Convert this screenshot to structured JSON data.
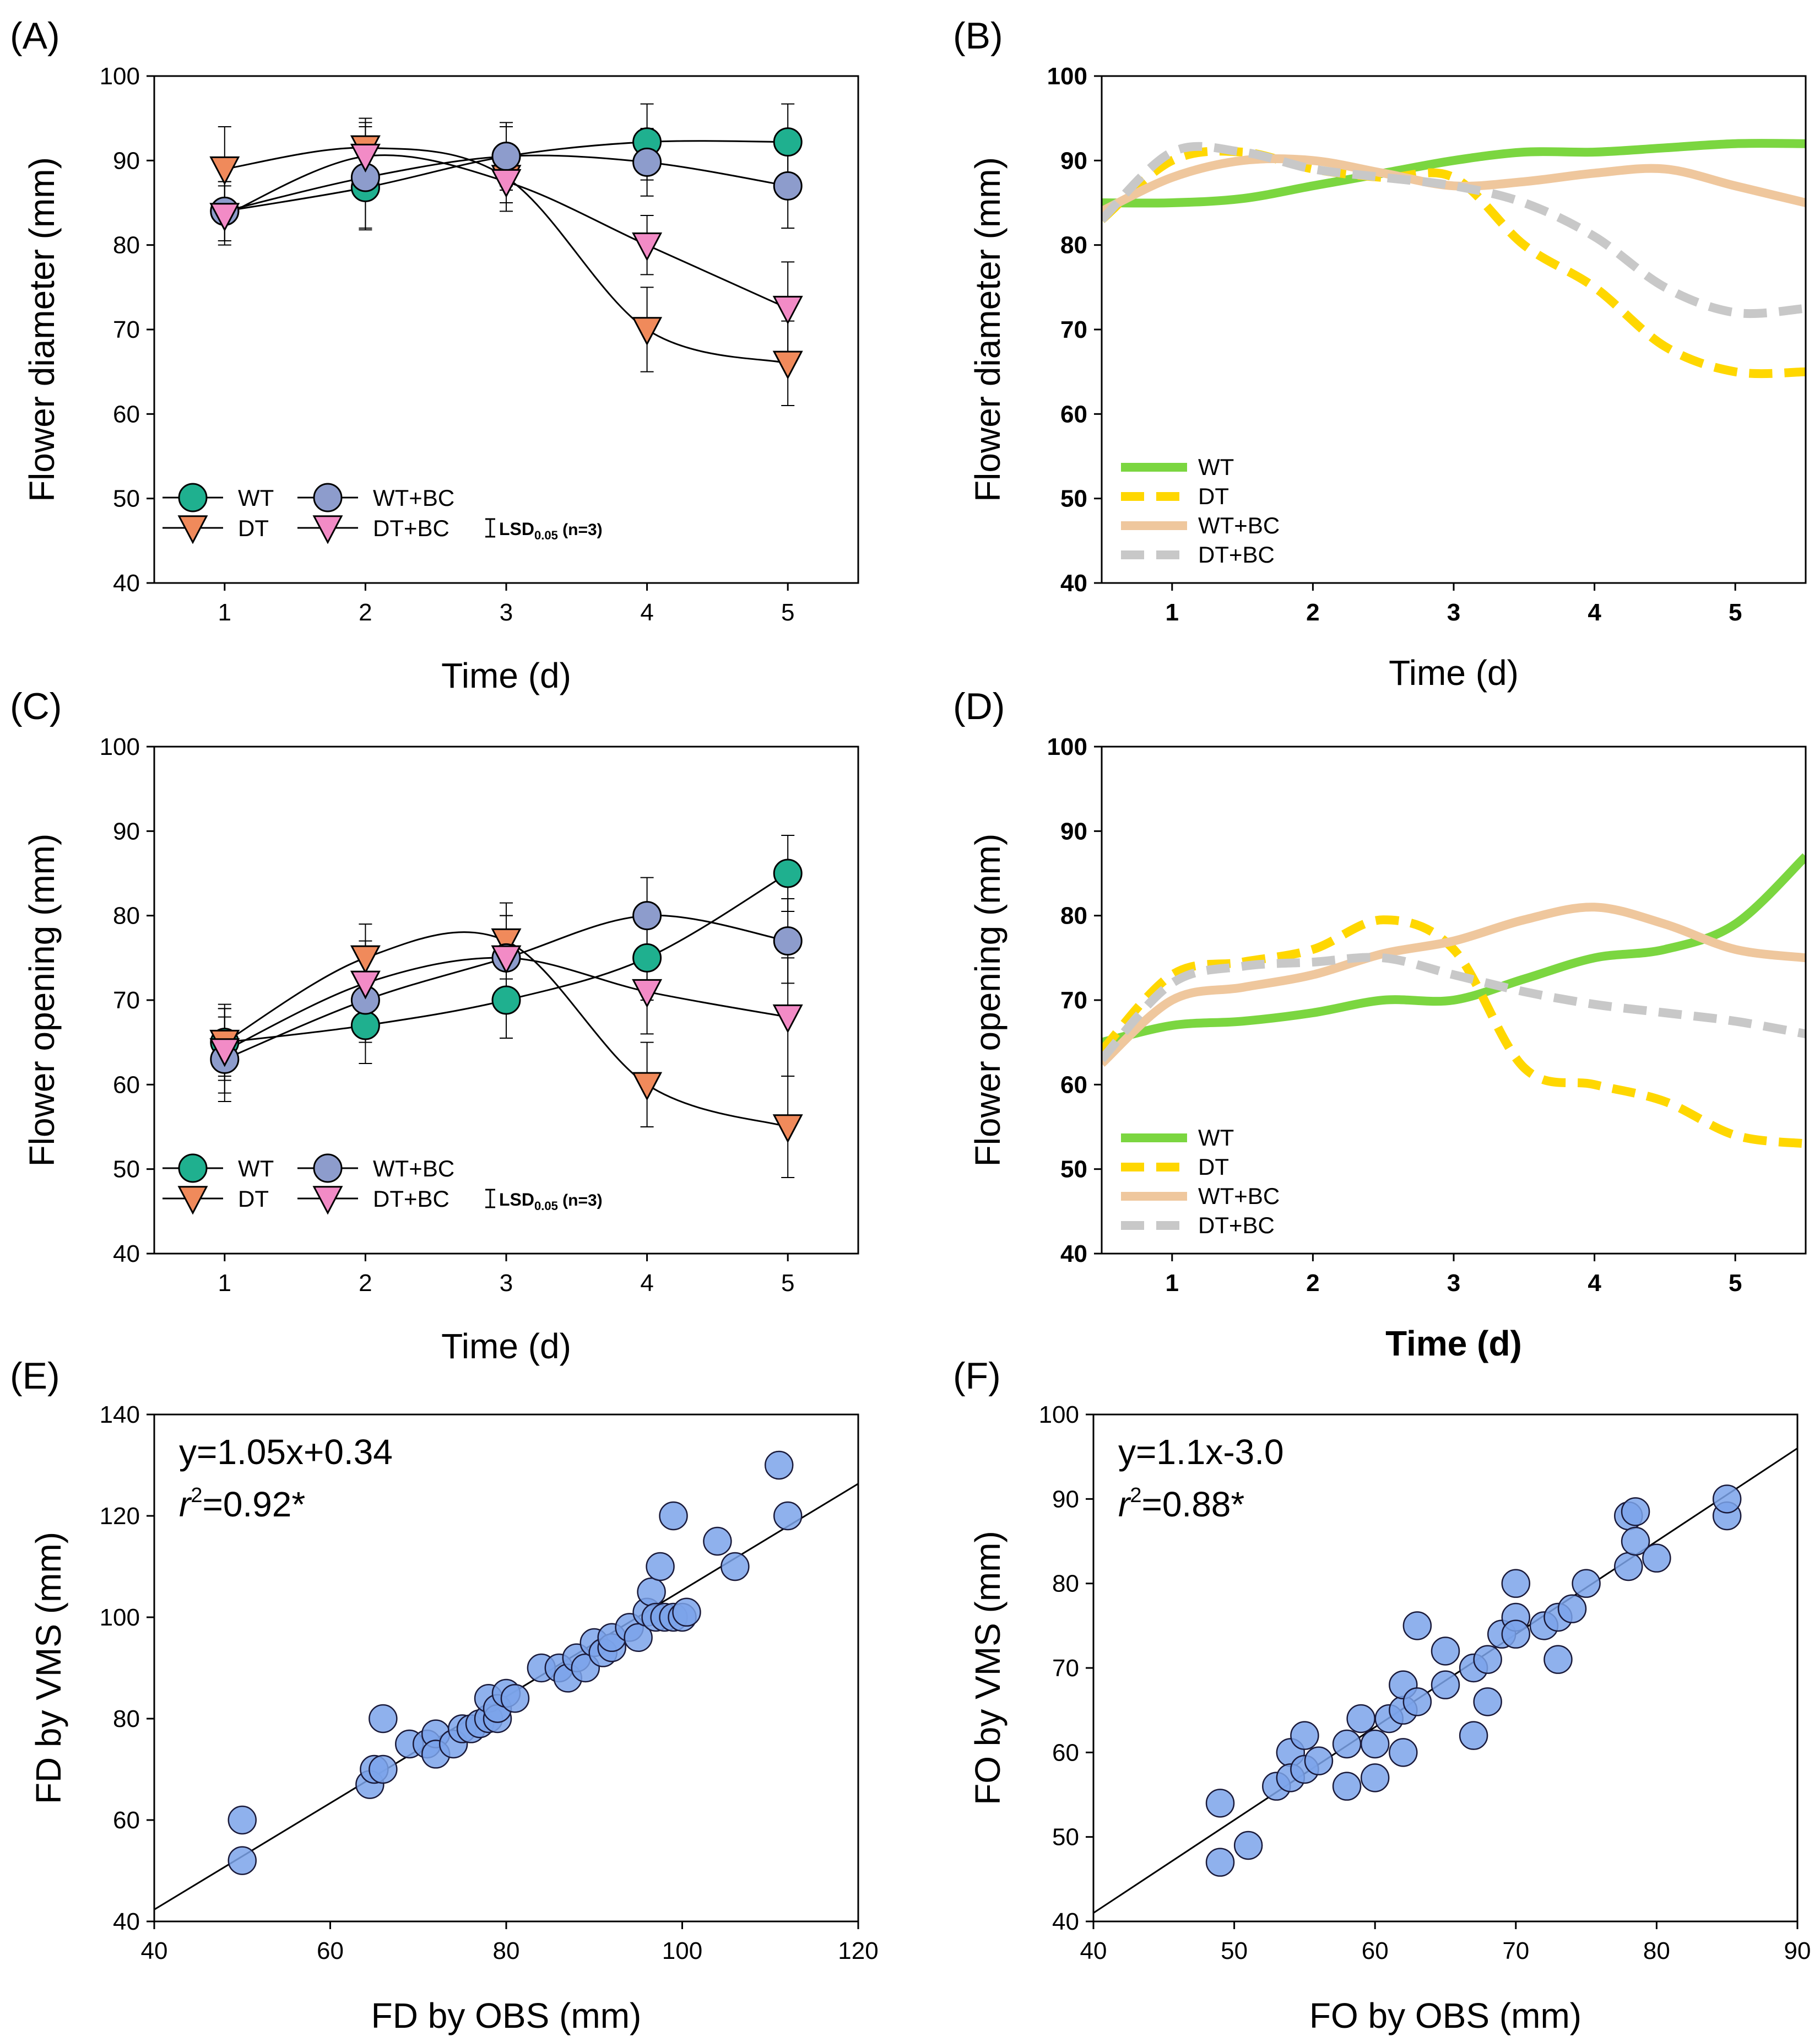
{
  "figure": {
    "colors": {
      "wt_marker": "#1fb08f",
      "dt_marker": "#f08a5b",
      "wtbc_marker": "#8d9ccc",
      "dtbc_marker": "#f28bc6",
      "wt_line": "#7bd640",
      "dt_line": "#ffd700",
      "wtbc_line": "#efc79d",
      "dtbc_line": "#c8c8c8",
      "scatter": "#7ba3ea"
    }
  },
  "chart_data": [
    {
      "id": "A",
      "panel_label": "(A)",
      "type": "line",
      "xlabel": "Time (d)",
      "ylabel": "Flower diameter (mm)",
      "xlim": [
        0.5,
        5.5
      ],
      "ylim": [
        40,
        100
      ],
      "x_ticks": [
        1,
        2,
        3,
        4,
        5
      ],
      "y_ticks": [
        40,
        50,
        60,
        70,
        80,
        90,
        100
      ],
      "x": [
        1,
        2,
        3,
        4,
        5
      ],
      "series": [
        {
          "name": "WT",
          "marker": "circle",
          "values": [
            84,
            86.8,
            90.5,
            92.2,
            92.2
          ],
          "errors": [
            3.5,
            5,
            3.5,
            4.5,
            4.5
          ]
        },
        {
          "name": "DT",
          "marker": "triangle-down",
          "values": [
            89,
            91.5,
            88,
            70,
            66
          ],
          "errors": [
            5,
            3.5,
            3,
            5,
            5
          ]
        },
        {
          "name": "WT+BC",
          "marker": "circle",
          "values": [
            84,
            88,
            90.5,
            89.8,
            87
          ],
          "errors": [
            3.5,
            6,
            4,
            4,
            5
          ]
        },
        {
          "name": "DT+BC",
          "marker": "triangle-down",
          "values": [
            83.5,
            90.5,
            87.5,
            80,
            72.5
          ],
          "errors": [
            3.5,
            4,
            3.5,
            3.5,
            5.5
          ]
        }
      ],
      "legend": {
        "position": "bottom-left",
        "lsd_label": "LSD",
        "lsd_sub": "0.05",
        "lsd_n": " (n=3)"
      }
    },
    {
      "id": "B",
      "panel_label": "(B)",
      "type": "line",
      "xlabel": "Time (d)",
      "ylabel": "Flower diameter (mm)",
      "xlim": [
        0.5,
        5.5
      ],
      "ylim": [
        40,
        100
      ],
      "x_ticks": [
        1,
        2,
        3,
        4,
        5
      ],
      "y_ticks": [
        40,
        50,
        60,
        70,
        80,
        90,
        100
      ],
      "series": [
        {
          "name": "WT",
          "style": "solid",
          "x": [
            0.5,
            1,
            1.5,
            2,
            2.5,
            3,
            3.5,
            4,
            4.5,
            5,
            5.5
          ],
          "values": [
            85,
            85,
            85.5,
            87,
            88.5,
            90,
            91,
            91,
            91.5,
            92,
            92
          ]
        },
        {
          "name": "DT",
          "style": "dashed",
          "x": [
            0.5,
            1,
            1.5,
            2,
            2.5,
            3,
            3.5,
            4,
            4.5,
            5,
            5.5
          ],
          "values": [
            83,
            90,
            91,
            89,
            88,
            88,
            80,
            75,
            68,
            65,
            65
          ]
        },
        {
          "name": "WT+BC",
          "style": "solid",
          "x": [
            0.5,
            1,
            1.5,
            2,
            2.5,
            3,
            3.5,
            4,
            4.5,
            5,
            5.5
          ],
          "values": [
            84,
            88,
            90,
            90,
            88.5,
            87,
            87.5,
            88.5,
            89,
            87,
            85
          ]
        },
        {
          "name": "DT+BC",
          "style": "dashed",
          "x": [
            0.5,
            1,
            1.5,
            2,
            2.5,
            3,
            3.5,
            4,
            4.5,
            5,
            5.5
          ],
          "values": [
            83,
            91,
            91,
            89,
            88,
            87,
            85,
            81,
            75,
            72,
            72.5
          ]
        }
      ],
      "legend": {
        "position": "bottom-left"
      }
    },
    {
      "id": "C",
      "panel_label": "(C)",
      "type": "line",
      "xlabel": "Time (d)",
      "ylabel": "Flower opening (mm)",
      "xlim": [
        0.5,
        5.5
      ],
      "ylim": [
        40,
        100
      ],
      "x_ticks": [
        1,
        2,
        3,
        4,
        5
      ],
      "y_ticks": [
        40,
        50,
        60,
        70,
        80,
        90,
        100
      ],
      "x": [
        1,
        2,
        3,
        4,
        5
      ],
      "series": [
        {
          "name": "WT",
          "marker": "circle",
          "values": [
            65,
            67,
            70,
            75,
            85
          ],
          "errors": [
            4,
            4.5,
            4.5,
            5,
            4.5
          ]
        },
        {
          "name": "DT",
          "marker": "triangle-down",
          "values": [
            65,
            75,
            77,
            60,
            55
          ],
          "errors": [
            4.5,
            4,
            4.5,
            5,
            6
          ]
        },
        {
          "name": "WT+BC",
          "marker": "circle",
          "values": [
            63,
            70,
            75,
            80,
            77
          ],
          "errors": [
            5,
            5,
            5,
            4.5,
            5
          ]
        },
        {
          "name": "DT+BC",
          "marker": "triangle-down",
          "values": [
            64,
            72,
            75,
            71,
            68
          ],
          "errors": [
            5,
            5,
            5,
            5,
            7
          ]
        }
      ],
      "legend": {
        "position": "bottom-left",
        "lsd_label": "LSD",
        "lsd_sub": "0.05",
        "lsd_n": " (n=3)"
      }
    },
    {
      "id": "D",
      "panel_label": "(D)",
      "type": "line",
      "xlabel": "Time (d)",
      "ylabel": "Flower opening (mm)",
      "xlim": [
        0.5,
        5.5
      ],
      "ylim": [
        40,
        100
      ],
      "x_ticks": [
        1,
        2,
        3,
        4,
        5
      ],
      "y_ticks": [
        40,
        50,
        60,
        70,
        80,
        90,
        100
      ],
      "series": [
        {
          "name": "WT",
          "style": "solid",
          "x": [
            0.5,
            1,
            1.5,
            2,
            2.5,
            3,
            3.5,
            4,
            4.5,
            5,
            5.5
          ],
          "values": [
            65,
            67,
            67.5,
            68.5,
            70,
            70,
            72.5,
            75,
            76,
            79,
            87
          ]
        },
        {
          "name": "DT",
          "style": "dashed",
          "x": [
            0.5,
            1,
            1.5,
            2,
            2.5,
            3,
            3.5,
            4,
            4.5,
            5,
            5.5
          ],
          "values": [
            64,
            73,
            74.5,
            76,
            79.5,
            76,
            62,
            60,
            58,
            54,
            53
          ]
        },
        {
          "name": "WT+BC",
          "style": "solid",
          "x": [
            0.5,
            1,
            1.5,
            2,
            2.5,
            3,
            3.5,
            4,
            4.5,
            5,
            5.5
          ],
          "values": [
            62.5,
            70,
            71.5,
            73,
            75.5,
            77,
            79.5,
            81,
            79,
            76,
            75
          ]
        },
        {
          "name": "DT+BC",
          "style": "dashed",
          "x": [
            0.5,
            1,
            1.5,
            2,
            2.5,
            3,
            3.5,
            4,
            4.5,
            5,
            5.5
          ],
          "values": [
            63,
            72,
            74,
            74.5,
            75,
            73,
            71,
            69.5,
            68.5,
            67.5,
            66
          ]
        }
      ],
      "legend": {
        "position": "bottom-left"
      }
    },
    {
      "id": "E",
      "panel_label": "(E)",
      "type": "scatter",
      "xlabel": "FD by OBS (mm)",
      "ylabel": "FD by VMS (mm)",
      "xlim": [
        40,
        120
      ],
      "ylim": [
        40,
        140
      ],
      "x_ticks": [
        40,
        60,
        80,
        100,
        120
      ],
      "y_ticks": [
        40,
        60,
        80,
        100,
        120,
        140
      ],
      "equation": "y=1.05x+0.34",
      "r2_label": "r",
      "r2_sup": "2",
      "r2_value": "=0.92*",
      "fit": {
        "slope": 1.05,
        "intercept": 0.34
      },
      "points": [
        [
          50,
          52
        ],
        [
          50,
          60
        ],
        [
          64.5,
          67
        ],
        [
          65,
          70
        ],
        [
          66,
          70
        ],
        [
          66,
          80
        ],
        [
          69,
          75
        ],
        [
          71,
          75
        ],
        [
          72,
          77
        ],
        [
          72,
          73
        ],
        [
          74,
          75
        ],
        [
          75,
          78
        ],
        [
          76,
          78
        ],
        [
          77,
          79
        ],
        [
          78,
          80
        ],
        [
          78,
          84
        ],
        [
          79,
          80
        ],
        [
          79,
          82
        ],
        [
          80,
          85
        ],
        [
          81,
          84
        ],
        [
          84,
          90
        ],
        [
          86,
          90
        ],
        [
          87,
          88
        ],
        [
          88,
          92
        ],
        [
          89,
          90
        ],
        [
          90,
          95
        ],
        [
          91,
          93
        ],
        [
          92,
          94
        ],
        [
          92,
          96
        ],
        [
          94,
          98
        ],
        [
          95,
          96
        ],
        [
          96,
          101
        ],
        [
          96.5,
          105
        ],
        [
          97,
          100
        ],
        [
          97.5,
          110
        ],
        [
          98,
          100
        ],
        [
          99,
          120
        ],
        [
          99,
          100
        ],
        [
          100,
          100
        ],
        [
          100.5,
          101
        ],
        [
          104,
          115
        ],
        [
          106,
          110
        ],
        [
          111,
          130
        ],
        [
          112,
          120
        ]
      ]
    },
    {
      "id": "F",
      "panel_label": "(F)",
      "type": "scatter",
      "xlabel": "FO by OBS (mm)",
      "ylabel": "FO by VMS (mm)",
      "xlim": [
        40,
        90
      ],
      "ylim": [
        40,
        100
      ],
      "x_ticks": [
        40,
        50,
        60,
        70,
        80,
        90
      ],
      "y_ticks": [
        40,
        50,
        60,
        70,
        80,
        90,
        100
      ],
      "equation": "y=1.1x-3.0",
      "r2_label": "r",
      "r2_sup": "2",
      "r2_value": "=0.88*",
      "fit": {
        "slope": 1.1,
        "intercept": -3.0
      },
      "points": [
        [
          49,
          47
        ],
        [
          49,
          54
        ],
        [
          51,
          49
        ],
        [
          53,
          56
        ],
        [
          54,
          60
        ],
        [
          54,
          57
        ],
        [
          55,
          58
        ],
        [
          55,
          62
        ],
        [
          56,
          59
        ],
        [
          58,
          56
        ],
        [
          58,
          61
        ],
        [
          59,
          64
        ],
        [
          60,
          57
        ],
        [
          60,
          61
        ],
        [
          61,
          64
        ],
        [
          62,
          65
        ],
        [
          62,
          68
        ],
        [
          62,
          60
        ],
        [
          63,
          66
        ],
        [
          63,
          75
        ],
        [
          65,
          68
        ],
        [
          65,
          72
        ],
        [
          67,
          70
        ],
        [
          67,
          62
        ],
        [
          68,
          71
        ],
        [
          68,
          66
        ],
        [
          69,
          74
        ],
        [
          70,
          80
        ],
        [
          70,
          76
        ],
        [
          70,
          74
        ],
        [
          72,
          75
        ],
        [
          73,
          76
        ],
        [
          73,
          71
        ],
        [
          74,
          77
        ],
        [
          75,
          80
        ],
        [
          78,
          82
        ],
        [
          78,
          88
        ],
        [
          78.5,
          88.5
        ],
        [
          78.5,
          85
        ],
        [
          80,
          83
        ],
        [
          85,
          88
        ],
        [
          85,
          90
        ]
      ]
    }
  ]
}
